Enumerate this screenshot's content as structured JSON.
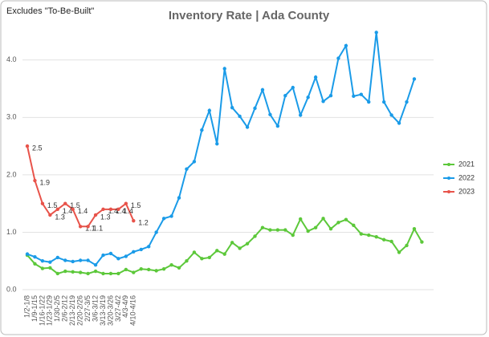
{
  "chart_data": {
    "type": "line",
    "title": "Inventory Rate | Ada County",
    "subtitle": "Excludes \"To-Be-Built\"",
    "categories": [
      "1/2-1/8",
      "1/9-1/15",
      "1/16-1/22",
      "1/23-1/29",
      "1/30-2/5",
      "2/6-2/12",
      "2/13-2/19",
      "2/20-2/26",
      "2/27-3/5",
      "3/6-3/12",
      "3/13-3/19",
      "3/20-3/26",
      "3/27-4/2",
      "4/3-4/9",
      "4/10-4/16",
      null,
      null,
      null,
      null,
      null,
      null,
      null,
      null,
      null,
      null,
      null,
      null,
      null,
      null,
      null,
      null,
      null,
      null,
      null,
      null,
      null,
      null,
      null,
      null,
      null,
      null,
      null,
      null,
      null,
      null,
      null,
      null,
      null,
      null,
      null,
      null,
      null,
      null
    ],
    "series": [
      {
        "name": "2021",
        "color": "#5cc83a",
        "values": [
          0.6,
          0.45,
          0.37,
          0.38,
          0.28,
          0.32,
          0.31,
          0.3,
          0.28,
          0.32,
          0.28,
          0.28,
          0.28,
          0.35,
          0.3,
          0.36,
          0.35,
          0.33,
          0.36,
          0.43,
          0.38,
          0.5,
          0.65,
          0.54,
          0.56,
          0.68,
          0.62,
          0.82,
          0.72,
          0.8,
          0.93,
          1.08,
          1.04,
          1.04,
          1.04,
          0.95,
          1.23,
          1.02,
          1.08,
          1.24,
          1.06,
          1.17,
          1.22,
          1.12,
          0.97,
          0.95,
          0.92,
          0.87,
          0.84,
          0.65,
          0.77,
          1.06,
          0.83
        ]
      },
      {
        "name": "2022",
        "color": "#1a9be8",
        "values": [
          0.62,
          0.57,
          0.5,
          0.48,
          0.56,
          0.51,
          0.49,
          0.51,
          0.51,
          0.43,
          0.6,
          0.63,
          0.54,
          0.58,
          0.66,
          0.7,
          0.75,
          1.0,
          1.24,
          1.28,
          1.6,
          2.1,
          2.23,
          2.78,
          3.12,
          2.54,
          3.85,
          3.17,
          3.02,
          2.83,
          3.16,
          3.48,
          3.05,
          2.85,
          3.38,
          3.52,
          3.04,
          3.35,
          3.7,
          3.28,
          3.38,
          4.03,
          4.25,
          3.37,
          3.4,
          3.27,
          4.48,
          3.27,
          3.04,
          2.9,
          3.27,
          3.67,
          null
        ]
      },
      {
        "name": "2023",
        "color": "#e8534a",
        "values": [
          2.5,
          1.9,
          1.5,
          1.3,
          1.4,
          1.5,
          1.4,
          1.1,
          1.1,
          1.3,
          1.4,
          1.4,
          1.4,
          1.5,
          1.2,
          null,
          null,
          null,
          null,
          null,
          null,
          null,
          null,
          null,
          null,
          null,
          null,
          null,
          null,
          null,
          null,
          null,
          null,
          null,
          null,
          null,
          null,
          null,
          null,
          null,
          null,
          null,
          null,
          null,
          null,
          null,
          null,
          null,
          null,
          null,
          null,
          null,
          null
        ]
      }
    ],
    "ylim": [
      0,
      4.5
    ],
    "yticks": [
      {
        "value": 0,
        "label": "0.0"
      },
      {
        "value": 1,
        "label": "1.0"
      },
      {
        "value": 2,
        "label": "2.0"
      },
      {
        "value": 3,
        "label": "3.0"
      },
      {
        "value": 4,
        "label": "4.0"
      }
    ],
    "grid": true,
    "legend": "right",
    "data_labels_series": "2023"
  }
}
